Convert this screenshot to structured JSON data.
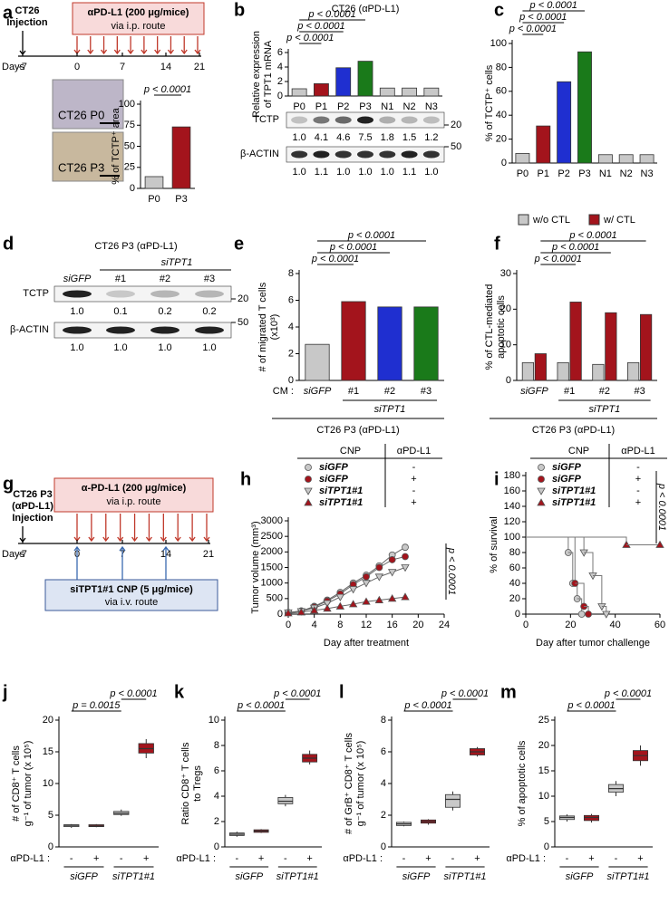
{
  "diagrams": {
    "a": {
      "label": "a",
      "injection": [
        "CT26",
        "Injection"
      ],
      "treatment": [
        "αPD-L1 (200 μg/mice)",
        "via i.p. route"
      ],
      "days_label": "Days",
      "day_ticks": [
        "-7",
        "0",
        "7",
        "14",
        "21"
      ],
      "micrographs": [
        "CT26 P0",
        "CT26 P3"
      ]
    },
    "g": {
      "label": "g",
      "injection": [
        "CT26 P3",
        "(αPD-L1)",
        "Injection"
      ],
      "treatment": [
        "α-PD-L1 (200 μg/mice)",
        "via i.p. route"
      ],
      "days_label": "Days",
      "day_ticks": [
        "-7",
        "0",
        "7",
        "14",
        "21"
      ],
      "delivery": [
        "siTPT1#1 CNP (5 μg/mice)",
        "via i.v. route"
      ]
    }
  },
  "blots": {
    "b": {
      "rows": [
        {
          "name": "TCTP",
          "marker": "20",
          "quant": [
            "1.0",
            "4.1",
            "4.6",
            "7.5",
            "1.8",
            "1.5",
            "1.2"
          ]
        },
        {
          "name": "β-ACTIN",
          "marker": "50",
          "quant": [
            "1.0",
            "1.1",
            "1.0",
            "1.0",
            "1.0",
            "1.1",
            "1.0"
          ]
        }
      ]
    },
    "d": {
      "label": "d",
      "title": "CT26 P3 (αPD-L1)",
      "group": "siTPT1",
      "lanes": [
        "siGFP",
        "#1",
        "#2",
        "#3"
      ],
      "rows": [
        {
          "name": "TCTP",
          "marker": "20",
          "quant": [
            "1.0",
            "0.1",
            "0.2",
            "0.2"
          ]
        },
        {
          "name": "β-ACTIN",
          "marker": "50",
          "quant": [
            "1.0",
            "1.0",
            "1.0",
            "1.0"
          ]
        }
      ]
    }
  },
  "chart_data": [
    {
      "type": "bar",
      "ylabel": [
        "% of TCTP⁺ area"
      ],
      "categories": [
        "P0",
        "P3"
      ],
      "values": [
        14,
        73
      ],
      "colors": [
        "#c8c8c8",
        "#a3141c"
      ],
      "ylim": [
        0,
        100
      ],
      "yticks": [
        0,
        25,
        50,
        75,
        100
      ],
      "annotations": [
        "p < 0.0001"
      ]
    },
    {
      "label": "b",
      "type": "bar",
      "title": "CT26 (αPD-L1)",
      "ylabel": [
        "Relative expression",
        "of TPT1 mRNA"
      ],
      "categories": [
        "P0",
        "P1",
        "P2",
        "P3",
        "N1",
        "N2",
        "N3"
      ],
      "values": [
        1.0,
        1.7,
        3.9,
        4.8,
        1.1,
        1.1,
        1.1
      ],
      "colors": [
        "#c8c8c8",
        "#a3141c",
        "#1f2fd0",
        "#1a7a1a",
        "#c8c8c8",
        "#c8c8c8",
        "#c8c8c8"
      ],
      "ylim": [
        0,
        6
      ],
      "yticks": [
        0,
        2,
        4,
        6
      ],
      "annotations": [
        "p < 0.0001",
        "p < 0.0001",
        "p < 0.0001"
      ]
    },
    {
      "label": "c",
      "type": "bar",
      "ylabel": [
        "% of TCTP⁺ cells"
      ],
      "categories": [
        "P0",
        "P1",
        "P2",
        "P3",
        "N1",
        "N2",
        "N3"
      ],
      "values": [
        8,
        31,
        68,
        93,
        7,
        7,
        7
      ],
      "colors": [
        "#c8c8c8",
        "#a3141c",
        "#1f2fd0",
        "#1a7a1a",
        "#c8c8c8",
        "#c8c8c8",
        "#c8c8c8"
      ],
      "ylim": [
        0,
        100
      ],
      "yticks": [
        0,
        20,
        40,
        60,
        80,
        100
      ],
      "annotations": [
        "p < 0.0001",
        "p < 0.0001",
        "p < 0.0001"
      ]
    },
    {
      "label": "e",
      "type": "bar",
      "ylabel": [
        "# of migrated T cells",
        "(x10³)"
      ],
      "categories": [
        "siGFP",
        "#1",
        "#2",
        "#3"
      ],
      "values": [
        2.7,
        5.9,
        5.5,
        5.5
      ],
      "colors": [
        "#c8c8c8",
        "#a3141c",
        "#1f2fd0",
        "#1a7a1a"
      ],
      "ylim": [
        0,
        8
      ],
      "yticks": [
        0,
        2,
        4,
        6,
        8
      ],
      "annotations": [
        "p < 0.0001",
        "p < 0.0001",
        "p < 0.0001"
      ],
      "group_labels": {
        "prefix": "CM :",
        "group": "siTPT1",
        "cell_line": "CT26 P3 (αPD-L1)"
      }
    },
    {
      "label": "f",
      "type": "grouped_bar",
      "ylabel": [
        "% of CTL-mediated",
        "apoptotic cells"
      ],
      "categories": [
        "siGFP",
        "#1",
        "#2",
        "#3"
      ],
      "series": [
        {
          "name": "w/o CTL",
          "color": "#c8c8c8",
          "values": [
            5,
            5,
            4.5,
            5
          ]
        },
        {
          "name": "w/ CTL",
          "color": "#a3141c",
          "values": [
            7.5,
            22,
            19,
            18.5
          ]
        }
      ],
      "ylim": [
        0,
        30
      ],
      "yticks": [
        0,
        10,
        20,
        30
      ],
      "annotations": [
        "p < 0.0001",
        "p < 0.0001",
        "p < 0.0001"
      ],
      "group_labels": {
        "group": "siTPT1",
        "cell_line": "CT26 P3 (αPD-L1)"
      }
    },
    {
      "label": "h",
      "type": "line",
      "legend_header": [
        "CNP",
        "αPD-L1"
      ],
      "xlabel": "Day after treatment",
      "ylabel": [
        "Tumor volume (mm³)"
      ],
      "x": [
        0,
        2,
        4,
        6,
        8,
        10,
        12,
        14,
        16,
        18
      ],
      "xlim": [
        0,
        24
      ],
      "xticks": [
        0,
        4,
        8,
        12,
        16,
        20,
        24
      ],
      "ylim": [
        0,
        3000
      ],
      "yticks": [
        0,
        500,
        1000,
        1500,
        2000,
        2500,
        3000
      ],
      "annotations": [
        "p < 0.0001"
      ],
      "series": [
        {
          "name": "siGFP",
          "treatment": "-",
          "color": "#c8c8c8",
          "marker": "circle",
          "values": [
            50,
            100,
            250,
            450,
            700,
            1000,
            1250,
            1550,
            1900,
            2150
          ]
        },
        {
          "name": "siGFP",
          "treatment": "+",
          "color": "#a3141c",
          "marker": "circle",
          "values": [
            50,
            100,
            230,
            420,
            650,
            950,
            1200,
            1500,
            1750,
            1850
          ]
        },
        {
          "name": "siTPT1#1",
          "treatment": "-",
          "color": "#c8c8c8",
          "marker": "triangle-down",
          "values": [
            50,
            90,
            200,
            350,
            550,
            800,
            1000,
            1200,
            1350,
            1500
          ]
        },
        {
          "name": "siTPT1#1",
          "treatment": "+",
          "color": "#a3141c",
          "marker": "triangle-up",
          "values": [
            30,
            60,
            120,
            180,
            250,
            320,
            400,
            450,
            500,
            550
          ]
        }
      ]
    },
    {
      "label": "i",
      "type": "survival",
      "legend_header": [
        "CNP",
        "αPD-L1"
      ],
      "xlabel": "Day after tumor challenge",
      "ylabel": [
        "% of survival"
      ],
      "xlim": [
        0,
        60
      ],
      "xticks": [
        0,
        20,
        40,
        60
      ],
      "ylim": [
        0,
        180
      ],
      "yticks": [
        0,
        20,
        40,
        60,
        80,
        100,
        120,
        140,
        160,
        180
      ],
      "annotations": [
        "p < 0.0001"
      ],
      "series": [
        {
          "name": "siGFP",
          "treatment": "-",
          "color": "#c8c8c8",
          "marker": "circle",
          "x": [
            0,
            19,
            21,
            23,
            25
          ],
          "values": [
            100,
            80,
            40,
            20,
            0
          ]
        },
        {
          "name": "siGFP",
          "treatment": "+",
          "color": "#a3141c",
          "marker": "circle",
          "x": [
            0,
            22,
            26,
            28
          ],
          "values": [
            100,
            40,
            10,
            0
          ]
        },
        {
          "name": "siTPT1#1",
          "treatment": "-",
          "color": "#c8c8c8",
          "marker": "triangle-down",
          "x": [
            0,
            26,
            30,
            34,
            36
          ],
          "values": [
            100,
            80,
            50,
            10,
            0
          ]
        },
        {
          "name": "siTPT1#1",
          "treatment": "+",
          "color": "#a3141c",
          "marker": "triangle-up",
          "x": [
            0,
            45,
            60
          ],
          "values": [
            100,
            90,
            90
          ]
        }
      ]
    },
    {
      "label": "j",
      "type": "box",
      "ylabel": [
        "# of CD8⁺ T cells",
        "g⁻¹ of tumor (x 10⁵)"
      ],
      "treatment_label": "αPD-L1 :",
      "categories": [
        "-",
        "+",
        "-",
        "+"
      ],
      "group_labels": [
        "siGFP",
        "siTPT1#1"
      ],
      "colors": [
        "#c8c8c8",
        "#a3141c",
        "#c8c8c8",
        "#a3141c"
      ],
      "ylim": [
        0,
        20
      ],
      "yticks": [
        0,
        5,
        10,
        15,
        20
      ],
      "annotations": [
        "p = 0.0015",
        "p < 0.0001"
      ],
      "boxes": [
        [
          3.0,
          3.2,
          3.4,
          3.5,
          3.6
        ],
        [
          3.1,
          3.2,
          3.3,
          3.5,
          3.6
        ],
        [
          4.9,
          5.1,
          5.3,
          5.6,
          5.9
        ],
        [
          14.0,
          14.8,
          15.5,
          16.3,
          17.0
        ]
      ]
    },
    {
      "label": "k",
      "type": "box",
      "ylabel": [
        "Ratio CD8⁺ T cells",
        "to Tregs"
      ],
      "treatment_label": "αPD-L1 :",
      "categories": [
        "-",
        "+",
        "-",
        "+"
      ],
      "group_labels": [
        "siGFP",
        "siTPT1#1"
      ],
      "colors": [
        "#c8c8c8",
        "#a3141c",
        "#c8c8c8",
        "#a3141c"
      ],
      "ylim": [
        0,
        10
      ],
      "yticks": [
        0,
        2,
        4,
        6,
        8,
        10
      ],
      "annotations": [
        "p < 0.0001",
        "p < 0.0001"
      ],
      "boxes": [
        [
          0.8,
          0.9,
          1.0,
          1.1,
          1.2
        ],
        [
          1.1,
          1.15,
          1.25,
          1.35,
          1.4
        ],
        [
          3.2,
          3.4,
          3.6,
          3.9,
          4.1
        ],
        [
          6.5,
          6.7,
          7.0,
          7.3,
          7.6
        ]
      ]
    },
    {
      "label": "l",
      "type": "box",
      "ylabel": [
        "# of GrB⁺ CD8⁺ T cells",
        "g⁻¹ of tumor (x 10⁵)"
      ],
      "treatment_label": "αPD-L1 :",
      "categories": [
        "-",
        "+",
        "-",
        "+"
      ],
      "group_labels": [
        "siGFP",
        "siTPT1#1"
      ],
      "colors": [
        "#c8c8c8",
        "#a3141c",
        "#c8c8c8",
        "#a3141c"
      ],
      "ylim": [
        0,
        8
      ],
      "yticks": [
        0,
        2,
        4,
        6,
        8
      ],
      "annotations": [
        "p < 0.0001",
        "p < 0.0001"
      ],
      "boxes": [
        [
          1.3,
          1.35,
          1.45,
          1.55,
          1.6
        ],
        [
          1.4,
          1.5,
          1.6,
          1.7,
          1.75
        ],
        [
          2.3,
          2.5,
          3.0,
          3.3,
          3.5
        ],
        [
          5.7,
          5.8,
          6.0,
          6.2,
          6.3
        ]
      ]
    },
    {
      "label": "m",
      "type": "box",
      "ylabel": [
        "% of apoptotic cells"
      ],
      "treatment_label": "αPD-L1 :",
      "categories": [
        "-",
        "+",
        "-",
        "+"
      ],
      "group_labels": [
        "siGFP",
        "siTPT1#1"
      ],
      "colors": [
        "#c8c8c8",
        "#a3141c",
        "#c8c8c8",
        "#a3141c"
      ],
      "ylim": [
        0,
        25
      ],
      "yticks": [
        0,
        5,
        10,
        15,
        20,
        25
      ],
      "annotations": [
        "p < 0.0001",
        "p < 0.0001"
      ],
      "boxes": [
        [
          5.0,
          5.4,
          5.8,
          6.1,
          6.4
        ],
        [
          4.8,
          5.2,
          5.8,
          6.2,
          6.5
        ],
        [
          10,
          10.8,
          11.5,
          12.3,
          13
        ],
        [
          16,
          17,
          18,
          19,
          20
        ]
      ]
    }
  ]
}
